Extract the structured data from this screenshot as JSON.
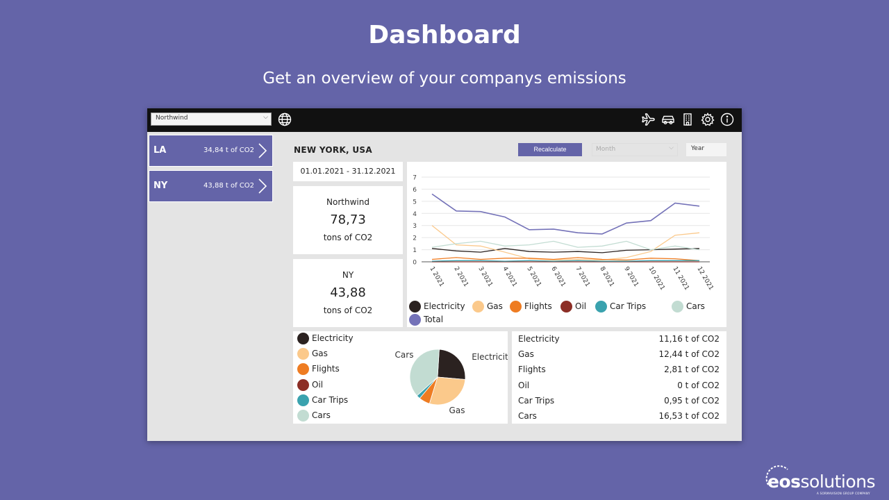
{
  "slide": {
    "title": "Dashboard",
    "subtitle": "Get an overview of your companys emissions"
  },
  "topbar": {
    "company": "Northwind",
    "icons": [
      "globe-icon",
      "plane-icon",
      "car-icon",
      "building-icon",
      "gear-icon",
      "info-icon"
    ]
  },
  "locations": [
    {
      "code": "LA",
      "value": "34,84 t of CO2"
    },
    {
      "code": "NY",
      "value": "43,88 t of CO2"
    }
  ],
  "main": {
    "city": "NEW YORK, USA",
    "recalculate_label": "Recalculate",
    "month_placeholder": "Month",
    "year_label": "Year",
    "date_range": "01.01.2021 - 31.12.2021",
    "kpi_company": {
      "name": "Northwind",
      "value": "78,73",
      "unit": "tons of CO2"
    },
    "kpi_location": {
      "name": "NY",
      "value": "43,88",
      "unit": "tons of CO2"
    }
  },
  "colors": {
    "Electricity": "#2b2220",
    "Gas": "#fbc98b",
    "Flights": "#ee7c22",
    "Oil": "#8c2e26",
    "Car Trips": "#3aa2ae",
    "Cars": "#c2dcd2",
    "Total": "#7472b8",
    "accent": "#6464a8"
  },
  "chart_data": [
    {
      "type": "line",
      "categories": [
        "1 2021",
        "2 2021",
        "3 2021",
        "4 2021",
        "5 2021",
        "6 2021",
        "7 2021",
        "8 2021",
        "9 2021",
        "10 2021",
        "11 2021",
        "12 2021"
      ],
      "y_ticks": [
        "0",
        "1",
        "2",
        "3",
        "4",
        "5",
        "6",
        "7"
      ],
      "ylim": [
        0,
        7
      ],
      "grid": true,
      "legend_position": "bottom",
      "series": [
        {
          "name": "Electricity",
          "values": [
            1.1,
            0.9,
            0.8,
            1.1,
            0.85,
            0.8,
            0.85,
            0.75,
            0.95,
            1.0,
            1.05,
            1.1
          ]
        },
        {
          "name": "Gas",
          "values": [
            3.0,
            1.4,
            1.3,
            0.8,
            0.25,
            0.15,
            0.2,
            0.15,
            0.35,
            0.85,
            2.2,
            2.4
          ]
        },
        {
          "name": "Flights",
          "values": [
            0.2,
            0.35,
            0.2,
            0.3,
            0.3,
            0.2,
            0.35,
            0.2,
            0.15,
            0.3,
            0.25,
            0.1
          ]
        },
        {
          "name": "Oil",
          "values": [
            0,
            0,
            0,
            0,
            0,
            0,
            0,
            0,
            0,
            0,
            0,
            0
          ]
        },
        {
          "name": "Car Trips",
          "values": [
            0.05,
            0.1,
            0.1,
            0.05,
            0.1,
            0.05,
            0.1,
            0.05,
            0.05,
            0.1,
            0.1,
            0.1
          ]
        },
        {
          "name": "Cars",
          "values": [
            1.2,
            1.5,
            1.7,
            1.3,
            1.4,
            1.7,
            1.2,
            1.3,
            1.7,
            1.0,
            1.3,
            1.0
          ]
        },
        {
          "name": "Total",
          "values": [
            5.6,
            4.2,
            4.15,
            3.7,
            2.65,
            2.7,
            2.4,
            2.3,
            3.2,
            3.4,
            4.85,
            4.6
          ]
        }
      ]
    },
    {
      "type": "pie",
      "slices": [
        {
          "label": "Electricity",
          "value": 11.16
        },
        {
          "label": "Gas",
          "value": 12.44
        },
        {
          "label": "Flights",
          "value": 2.81
        },
        {
          "label": "Oil",
          "value": 0
        },
        {
          "label": "Car Trips",
          "value": 0.95
        },
        {
          "label": "Cars",
          "value": 16.53
        }
      ],
      "slice_labels": [
        "Electricity",
        "Gas",
        "Cars"
      ]
    }
  ],
  "breakdown": [
    {
      "name": "Electricity",
      "value": "11,16 t of CO2"
    },
    {
      "name": "Gas",
      "value": "12,44 t of CO2"
    },
    {
      "name": "Flights",
      "value": "2,81 t of CO2"
    },
    {
      "name": "Oil",
      "value": "0 t of CO2"
    },
    {
      "name": "Car Trips",
      "value": "0,95 t of CO2"
    },
    {
      "name": "Cars",
      "value": "16,53 t of CO2"
    }
  ],
  "logo": {
    "brand_light": "eos",
    "brand_rest": "solutions",
    "tagline": "A SORMAVISION GROUP COMPANY"
  }
}
